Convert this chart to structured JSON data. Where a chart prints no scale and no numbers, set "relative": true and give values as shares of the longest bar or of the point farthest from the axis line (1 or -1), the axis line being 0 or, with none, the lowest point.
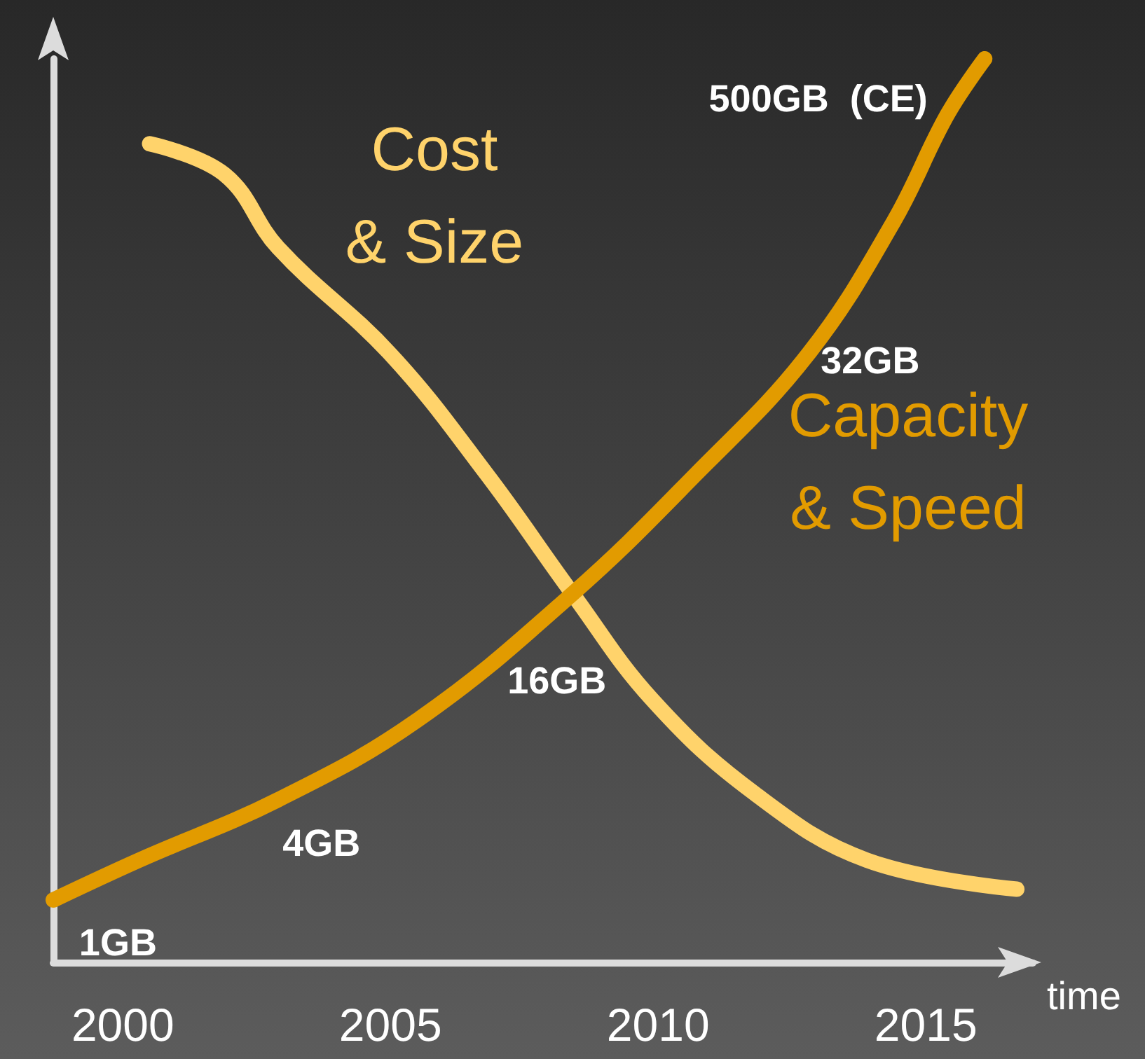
{
  "chart_data": {
    "type": "line",
    "relative": true,
    "xlabel": "time",
    "xlim": [
      1998.7,
      2017
    ],
    "xticks": [
      2000,
      2005,
      2010,
      2015
    ],
    "grid": false,
    "legend": false,
    "line_style": "solid",
    "series": [
      {
        "name": "Cost & Size",
        "color": "#ffd36b",
        "x": [
          2000.5,
          2001.9,
          2002.9,
          2005.0,
          2006.8,
          2008.4,
          2009.9,
          2011.8,
          2013.9,
          2016.7
        ],
        "values": [
          0.906,
          0.872,
          0.791,
          0.673,
          0.54,
          0.408,
          0.29,
          0.187,
          0.113,
          0.081
        ]
      },
      {
        "name": "Capacity & Speed",
        "color": "#e29b00",
        "x": [
          1998.7,
          2000.3,
          2002.9,
          2005.5,
          2008.4,
          2010.7,
          2012.8,
          2014.4,
          2015.4,
          2016.1
        ],
        "values": [
          0.069,
          0.113,
          0.18,
          0.268,
          0.408,
          0.54,
          0.673,
          0.82,
          0.938,
          1.0
        ]
      }
    ],
    "annotations": [
      {
        "text": "1GB",
        "x": 1999.7,
        "y": 0.09
      },
      {
        "text": "4GB",
        "x": 2003.5,
        "y": 0.2
      },
      {
        "text": "16GB",
        "x": 2007.9,
        "y": 0.38
      },
      {
        "text": "32GB",
        "x": 2012.6,
        "y": 0.66
      },
      {
        "text": "500GB  (CE)",
        "x": 2016,
        "y": 0.99
      }
    ]
  }
}
